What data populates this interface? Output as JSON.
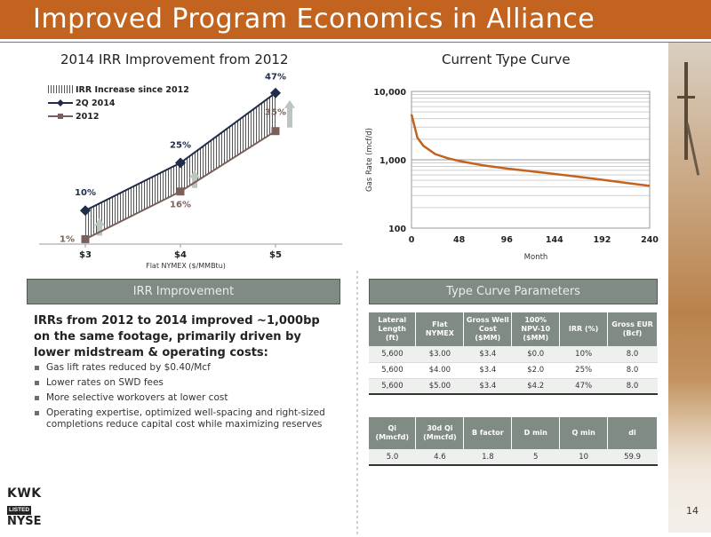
{
  "header": {
    "title": "Improved Program Economics in Alliance"
  },
  "irr_chart_title": "2014 IRR Improvement from 2012",
  "type_curve_title": "Current Type Curve",
  "irr_section_label": "IRR Improvement",
  "type_curve_section_label": "Type Curve Parameters",
  "lead_text": "IRRs from 2012 to 2014 improved ~1,000bp on the same footage, primarily driven by lower midstream & operating costs:",
  "bullets": [
    "Gas lift rates reduced by $0.40/Mcf",
    "Lower rates on SWD fees",
    "More selective workovers at lower cost",
    "Operating expertise, optimized well-spacing and right-sized completions reduce capital cost while maximizing reserves"
  ],
  "page_number": "14",
  "logo": {
    "line1": "KWK",
    "line2": "LISTED",
    "line3": "NYSE"
  },
  "table1": {
    "headers": [
      "Lateral Length (ft)",
      "Flat NYMEX",
      "Gross Well Cost ($MM)",
      "100% NPV-10 ($MM)",
      "IRR (%)",
      "Gross EUR (Bcf)"
    ],
    "rows": [
      [
        "5,600",
        "$3.00",
        "$3.4",
        "$0.0",
        "10%",
        "8.0"
      ],
      [
        "5,600",
        "$4.00",
        "$3.4",
        "$2.0",
        "25%",
        "8.0"
      ],
      [
        "5,600",
        "$5.00",
        "$3.4",
        "$4.2",
        "47%",
        "8.0"
      ]
    ]
  },
  "table2": {
    "headers": [
      "Qi (Mmcfd)",
      "30d Qi (Mmcfd)",
      "B factor",
      "D min",
      "Q min",
      "di"
    ],
    "rows": [
      [
        "5.0",
        "4.6",
        "1.8",
        "5",
        "10",
        "59.9"
      ]
    ]
  },
  "colors": {
    "header_bg": "#c2641f",
    "section_bar": "#7f8b83",
    "series_2014": "#1f2d4a",
    "series_2012": "#7a5f5b",
    "type_curve": "#c2641f"
  },
  "chart_data": [
    {
      "type": "line",
      "title": "2014 IRR Improvement from 2012",
      "xlabel": "Flat NYMEX ($/MMBtu)",
      "categories": [
        "$3",
        "$4",
        "$5"
      ],
      "series": [
        {
          "name": "2Q 2014",
          "values": [
            10,
            25,
            47
          ],
          "labels": [
            "10%",
            "25%",
            "47%"
          ]
        },
        {
          "name": "2012",
          "values": [
            1,
            16,
            35
          ],
          "labels": [
            "1%",
            "16%",
            "35%"
          ]
        }
      ],
      "band_name": "IRR Increase since 2012",
      "legend": [
        "IRR Increase since 2012",
        "2Q 2014",
        "2012"
      ],
      "ylim": [
        0,
        50
      ],
      "legend_position": "top-left"
    },
    {
      "type": "line",
      "title": "Current Type Curve",
      "xlabel": "Month",
      "ylabel": "Gas Rate (mcf/d)",
      "x_ticks": [
        "0",
        "48",
        "96",
        "144",
        "192",
        "240"
      ],
      "y_ticks": [
        "100",
        "1,000",
        "10,000"
      ],
      "xlim": [
        0,
        240
      ],
      "ylim": [
        100,
        10000
      ],
      "y_scale": "log",
      "grid": true,
      "model": {
        "qi_mcfd": 5000,
        "b": 1.8,
        "di_month": 0.05,
        "dmin_annual": 0.05
      },
      "series": [
        {
          "name": "",
          "x": [
            0,
            6,
            12,
            24,
            36,
            48,
            72,
            96,
            120,
            144,
            168,
            192,
            216,
            240
          ],
          "y": [
            4600,
            2100,
            1600,
            1210,
            1060,
            960,
            830,
            745,
            680,
            620,
            565,
            510,
            460,
            415
          ]
        }
      ]
    }
  ]
}
